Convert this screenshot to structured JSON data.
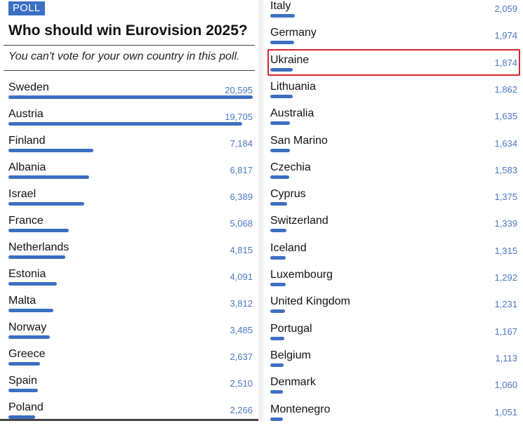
{
  "poll": {
    "badge": "POLL",
    "title": "Who should win Eurovision 2025?",
    "subtitle": "You can't vote for your own country in this poll.",
    "max_votes": 20595,
    "left_options": [
      {
        "country": "Sweden",
        "votes": 20595,
        "votes_label": "20,595"
      },
      {
        "country": "Austria",
        "votes": 19705,
        "votes_label": "19,705"
      },
      {
        "country": "Finland",
        "votes": 7184,
        "votes_label": "7,184"
      },
      {
        "country": "Albania",
        "votes": 6817,
        "votes_label": "6,817"
      },
      {
        "country": "Israel",
        "votes": 6389,
        "votes_label": "6,389"
      },
      {
        "country": "France",
        "votes": 5068,
        "votes_label": "5,068"
      },
      {
        "country": "Netherlands",
        "votes": 4815,
        "votes_label": "4,815"
      },
      {
        "country": "Estonia",
        "votes": 4091,
        "votes_label": "4,091"
      },
      {
        "country": "Malta",
        "votes": 3812,
        "votes_label": "3,812"
      },
      {
        "country": "Norway",
        "votes": 3485,
        "votes_label": "3,485"
      },
      {
        "country": "Greece",
        "votes": 2637,
        "votes_label": "2,637"
      },
      {
        "country": "Spain",
        "votes": 2510,
        "votes_label": "2,510"
      },
      {
        "country": "Poland",
        "votes": 2266,
        "votes_label": "2,266"
      }
    ],
    "right_options": [
      {
        "country": "Italy",
        "votes": 2059,
        "votes_label": "2,059"
      },
      {
        "country": "Germany",
        "votes": 1974,
        "votes_label": "1,974"
      },
      {
        "country": "Ukraine",
        "votes": 1874,
        "votes_label": "1,874",
        "highlighted": true
      },
      {
        "country": "Lithuania",
        "votes": 1862,
        "votes_label": "1,862"
      },
      {
        "country": "Australia",
        "votes": 1635,
        "votes_label": "1,635"
      },
      {
        "country": "San Marino",
        "votes": 1634,
        "votes_label": "1,634"
      },
      {
        "country": "Czechia",
        "votes": 1583,
        "votes_label": "1,583"
      },
      {
        "country": "Cyprus",
        "votes": 1375,
        "votes_label": "1,375"
      },
      {
        "country": "Switzerland",
        "votes": 1339,
        "votes_label": "1,339"
      },
      {
        "country": "Iceland",
        "votes": 1315,
        "votes_label": "1,315"
      },
      {
        "country": "Luxembourg",
        "votes": 1292,
        "votes_label": "1,292"
      },
      {
        "country": "United Kingdom",
        "votes": 1231,
        "votes_label": "1,231"
      },
      {
        "country": "Portugal",
        "votes": 1167,
        "votes_label": "1,167"
      },
      {
        "country": "Belgium",
        "votes": 1113,
        "votes_label": "1,113"
      },
      {
        "country": "Denmark",
        "votes": 1060,
        "votes_label": "1,060"
      },
      {
        "country": "Montenegro",
        "votes": 1051,
        "votes_label": "1,051"
      }
    ]
  },
  "colors": {
    "bar": "#3d6fc2",
    "badge": "#3a6fc4",
    "count_text": "#4a78c2",
    "highlight_border": "#d9232e"
  }
}
